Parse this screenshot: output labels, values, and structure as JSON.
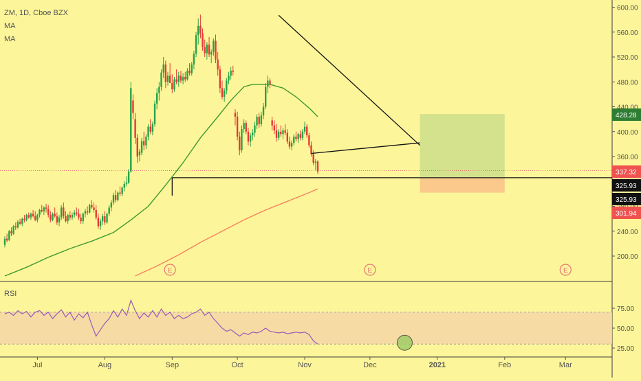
{
  "legend": {
    "symbol": "ZM, 1D, Cboe BZX",
    "ma1": "MA",
    "ma2": "MA"
  },
  "rsi_label": "RSI",
  "earnings_marker": "E",
  "colors": {
    "background": "#fdf59a",
    "up": "#26a346",
    "down": "#e53935",
    "ma50": "#3f9a2f",
    "ma200": "#f4845f",
    "rsi_line": "#9b59b6",
    "rsi_band": "#f5d7a6",
    "trend": "#111111",
    "profit_zone": "#cfe08c",
    "loss_zone": "#f9c48a",
    "price_dotted": "#e57373",
    "badge_green": "#2e7d32",
    "badge_red": "#ef5350",
    "badge_black": "#111111",
    "rsi_circle": "#9ccc65"
  },
  "chart_data": {
    "type": "candlestick",
    "price_axis": {
      "ylim": [
        150,
        610
      ],
      "ticks": [
        "200.00",
        "240.00",
        "280.00",
        "320.00",
        "360.00",
        "400.00",
        "440.00",
        "480.00",
        "520.00",
        "560.00",
        "600.00"
      ]
    },
    "rsi_axis": {
      "ylim": [
        20,
        90
      ],
      "ticks": [
        "25.00",
        "50.00",
        "75.00"
      ],
      "band": [
        30,
        70
      ]
    },
    "x_axis": {
      "labels": [
        "Jul",
        "Aug",
        "Sep",
        "Oct",
        "Nov",
        "Dec",
        "2021",
        "Feb",
        "Mar"
      ],
      "label_days": [
        15,
        46,
        77,
        107,
        138,
        168,
        199,
        230,
        258
      ]
    },
    "price_badges": [
      {
        "label": "428.28",
        "value": 428.28,
        "color": "green"
      },
      {
        "label": "337.32",
        "value": 337.32,
        "color": "red"
      },
      {
        "label": "325.93",
        "value": 325.93,
        "color": "black"
      },
      {
        "label": "325.93",
        "value": 325.93,
        "color": "black"
      },
      {
        "label": "301.94",
        "value": 301.94,
        "color": "red"
      }
    ],
    "earnings_days": [
      76,
      168,
      258
    ],
    "horizontal_level": {
      "value": 325.93,
      "from_day": 77,
      "to_day": 260
    },
    "dotted_level": {
      "value": 337.32
    },
    "trendlines": [
      {
        "points": [
          [
            126,
            587
          ],
          [
            191,
            378
          ]
        ]
      },
      {
        "points": [
          [
            141,
            365
          ],
          [
            191,
            382
          ]
        ]
      }
    ],
    "position_box": {
      "from_day": 191,
      "to_day": 230,
      "entry": 325.93,
      "target": 428.28,
      "stop": 301.94
    },
    "rsi_highlight": {
      "day": 184,
      "value": 30
    },
    "ohlc": [
      [
        0,
        218,
        232,
        214,
        228
      ],
      [
        1,
        228,
        236,
        222,
        225
      ],
      [
        2,
        226,
        242,
        224,
        240
      ],
      [
        3,
        240,
        246,
        232,
        236
      ],
      [
        4,
        236,
        250,
        234,
        248
      ],
      [
        5,
        248,
        254,
        242,
        246
      ],
      [
        6,
        246,
        258,
        244,
        255
      ],
      [
        7,
        255,
        260,
        250,
        252
      ],
      [
        8,
        252,
        262,
        248,
        260
      ],
      [
        9,
        260,
        266,
        254,
        258
      ],
      [
        10,
        258,
        268,
        256,
        266
      ],
      [
        11,
        266,
        270,
        260,
        262
      ],
      [
        12,
        262,
        270,
        258,
        268
      ],
      [
        13,
        268,
        274,
        262,
        264
      ],
      [
        14,
        264,
        272,
        256,
        258
      ],
      [
        15,
        258,
        268,
        254,
        266
      ],
      [
        16,
        266,
        276,
        262,
        274
      ],
      [
        17,
        274,
        282,
        270,
        272
      ],
      [
        18,
        272,
        280,
        266,
        278
      ],
      [
        19,
        278,
        284,
        270,
        276
      ],
      [
        20,
        276,
        282,
        262,
        266
      ],
      [
        21,
        266,
        272,
        254,
        258
      ],
      [
        22,
        258,
        270,
        256,
        268
      ],
      [
        23,
        268,
        278,
        262,
        264
      ],
      [
        24,
        264,
        270,
        250,
        254
      ],
      [
        25,
        254,
        266,
        248,
        262
      ],
      [
        26,
        262,
        282,
        258,
        278
      ],
      [
        27,
        278,
        286,
        260,
        264
      ],
      [
        28,
        264,
        272,
        254,
        256
      ],
      [
        29,
        256,
        268,
        252,
        266
      ],
      [
        30,
        266,
        272,
        258,
        262
      ],
      [
        31,
        262,
        270,
        258,
        266
      ],
      [
        32,
        266,
        274,
        262,
        270
      ],
      [
        33,
        270,
        278,
        264,
        268
      ],
      [
        34,
        268,
        276,
        258,
        262
      ],
      [
        35,
        262,
        268,
        252,
        256
      ],
      [
        36,
        256,
        270,
        252,
        268
      ],
      [
        37,
        268,
        276,
        262,
        272
      ],
      [
        38,
        272,
        280,
        266,
        270
      ],
      [
        39,
        270,
        284,
        268,
        282
      ],
      [
        40,
        282,
        290,
        276,
        278
      ],
      [
        41,
        278,
        286,
        270,
        274
      ],
      [
        42,
        274,
        282,
        258,
        262
      ],
      [
        43,
        262,
        268,
        244,
        248
      ],
      [
        44,
        248,
        260,
        242,
        256
      ],
      [
        45,
        256,
        268,
        250,
        264
      ],
      [
        46,
        264,
        272,
        250,
        254
      ],
      [
        47,
        254,
        270,
        252,
        268
      ],
      [
        48,
        268,
        282,
        264,
        278
      ],
      [
        49,
        278,
        290,
        272,
        286
      ],
      [
        50,
        286,
        302,
        282,
        298
      ],
      [
        51,
        298,
        306,
        286,
        290
      ],
      [
        52,
        290,
        304,
        288,
        302
      ],
      [
        53,
        302,
        312,
        296,
        300
      ],
      [
        54,
        300,
        312,
        296,
        310
      ],
      [
        55,
        310,
        320,
        304,
        316
      ],
      [
        56,
        316,
        328,
        312,
        318
      ],
      [
        57,
        318,
        340,
        316,
        336
      ],
      [
        58,
        336,
        480,
        334,
        470
      ],
      [
        59,
        450,
        460,
        420,
        430
      ],
      [
        60,
        420,
        430,
        380,
        390
      ],
      [
        61,
        390,
        396,
        350,
        360
      ],
      [
        62,
        362,
        372,
        352,
        368
      ],
      [
        63,
        366,
        390,
        362,
        385
      ],
      [
        64,
        385,
        400,
        370,
        378
      ],
      [
        65,
        378,
        396,
        372,
        392
      ],
      [
        66,
        392,
        412,
        386,
        408
      ],
      [
        67,
        408,
        420,
        396,
        400
      ],
      [
        68,
        400,
        416,
        394,
        412
      ],
      [
        69,
        412,
        450,
        408,
        445
      ],
      [
        70,
        445,
        470,
        436,
        462
      ],
      [
        71,
        462,
        480,
        450,
        472
      ],
      [
        72,
        472,
        500,
        466,
        495
      ],
      [
        73,
        495,
        520,
        486,
        508
      ],
      [
        74,
        508,
        514,
        470,
        480
      ],
      [
        75,
        480,
        496,
        474,
        490
      ],
      [
        76,
        490,
        510,
        480,
        478
      ],
      [
        77,
        478,
        492,
        462,
        468
      ],
      [
        78,
        468,
        488,
        464,
        484
      ],
      [
        79,
        484,
        500,
        476,
        480
      ],
      [
        80,
        480,
        496,
        472,
        490
      ],
      [
        81,
        490,
        498,
        478,
        482
      ],
      [
        82,
        482,
        494,
        476,
        488
      ],
      [
        83,
        488,
        496,
        480,
        484
      ],
      [
        84,
        484,
        502,
        482,
        498
      ],
      [
        85,
        498,
        510,
        490,
        494
      ],
      [
        86,
        494,
        512,
        490,
        508
      ],
      [
        87,
        508,
        530,
        500,
        525
      ],
      [
        88,
        525,
        560,
        520,
        555
      ],
      [
        89,
        555,
        582,
        540,
        570
      ],
      [
        90,
        570,
        588,
        550,
        558
      ],
      [
        91,
        558,
        566,
        530,
        536
      ],
      [
        92,
        536,
        548,
        520,
        526
      ],
      [
        93,
        526,
        544,
        516,
        540
      ],
      [
        94,
        540,
        552,
        520,
        524
      ],
      [
        95,
        524,
        532,
        510,
        528
      ],
      [
        96,
        528,
        550,
        522,
        546
      ],
      [
        97,
        546,
        556,
        510,
        516
      ],
      [
        98,
        516,
        528,
        490,
        500
      ],
      [
        99,
        500,
        506,
        462,
        470
      ],
      [
        100,
        470,
        482,
        452,
        456
      ],
      [
        101,
        456,
        470,
        448,
        466
      ],
      [
        102,
        466,
        486,
        460,
        482
      ],
      [
        103,
        482,
        496,
        476,
        490
      ],
      [
        104,
        490,
        504,
        484,
        498
      ],
      [
        105,
        498,
        506,
        490,
        496
      ],
      [
        106,
        430,
        436,
        410,
        424
      ],
      [
        107,
        424,
        432,
        386,
        392
      ],
      [
        108,
        392,
        400,
        362,
        370
      ],
      [
        109,
        370,
        410,
        366,
        404
      ],
      [
        110,
        404,
        420,
        398,
        414
      ],
      [
        111,
        414,
        418,
        396,
        400
      ],
      [
        112,
        400,
        406,
        378,
        384
      ],
      [
        113,
        384,
        398,
        376,
        394
      ],
      [
        114,
        394,
        404,
        386,
        398
      ],
      [
        115,
        398,
        416,
        392,
        410
      ],
      [
        116,
        410,
        428,
        404,
        424
      ],
      [
        117,
        424,
        430,
        406,
        412
      ],
      [
        118,
        412,
        432,
        408,
        426
      ],
      [
        119,
        426,
        446,
        420,
        440
      ],
      [
        120,
        440,
        478,
        436,
        472
      ],
      [
        121,
        472,
        490,
        462,
        482
      ],
      [
        122,
        482,
        486,
        470,
        476
      ],
      [
        123,
        418,
        424,
        402,
        410
      ],
      [
        124,
        410,
        418,
        396,
        402
      ],
      [
        125,
        402,
        412,
        384,
        390
      ],
      [
        126,
        390,
        404,
        386,
        400
      ],
      [
        127,
        400,
        410,
        392,
        396
      ],
      [
        128,
        396,
        406,
        388,
        402
      ],
      [
        129,
        402,
        412,
        394,
        398
      ],
      [
        130,
        398,
        404,
        380,
        384
      ],
      [
        131,
        384,
        392,
        372,
        376
      ],
      [
        132,
        376,
        386,
        370,
        382
      ],
      [
        133,
        382,
        396,
        378,
        392
      ],
      [
        134,
        392,
        400,
        384,
        388
      ],
      [
        135,
        388,
        398,
        382,
        396
      ],
      [
        136,
        396,
        402,
        386,
        390
      ],
      [
        137,
        390,
        404,
        386,
        400
      ],
      [
        138,
        400,
        416,
        396,
        408
      ],
      [
        139,
        408,
        412,
        390,
        394
      ],
      [
        140,
        394,
        398,
        374,
        378
      ],
      [
        141,
        378,
        384,
        360,
        364
      ],
      [
        142,
        364,
        370,
        346,
        350
      ],
      [
        143,
        350,
        356,
        338,
        352
      ],
      [
        144,
        352,
        354,
        332,
        336
      ]
    ],
    "ma50": [
      [
        0,
        168
      ],
      [
        10,
        182
      ],
      [
        20,
        198
      ],
      [
        30,
        212
      ],
      [
        40,
        224
      ],
      [
        50,
        238
      ],
      [
        58,
        258
      ],
      [
        66,
        280
      ],
      [
        74,
        314
      ],
      [
        82,
        350
      ],
      [
        90,
        390
      ],
      [
        98,
        424
      ],
      [
        104,
        450
      ],
      [
        110,
        472
      ],
      [
        114,
        476
      ],
      [
        122,
        476
      ],
      [
        128,
        470
      ],
      [
        134,
        456
      ],
      [
        140,
        438
      ],
      [
        144,
        424
      ]
    ],
    "ma200": [
      [
        60,
        168
      ],
      [
        70,
        184
      ],
      [
        80,
        202
      ],
      [
        90,
        222
      ],
      [
        100,
        240
      ],
      [
        110,
        258
      ],
      [
        120,
        274
      ],
      [
        130,
        288
      ],
      [
        140,
        302
      ],
      [
        144,
        308
      ]
    ],
    "rsi": [
      [
        0,
        68
      ],
      [
        2,
        70
      ],
      [
        4,
        66
      ],
      [
        6,
        72
      ],
      [
        8,
        68
      ],
      [
        10,
        71
      ],
      [
        12,
        64
      ],
      [
        14,
        70
      ],
      [
        16,
        72
      ],
      [
        18,
        66
      ],
      [
        20,
        70
      ],
      [
        22,
        62
      ],
      [
        24,
        68
      ],
      [
        26,
        73
      ],
      [
        28,
        64
      ],
      [
        30,
        70
      ],
      [
        32,
        60
      ],
      [
        34,
        68
      ],
      [
        36,
        63
      ],
      [
        38,
        70
      ],
      [
        40,
        54
      ],
      [
        42,
        40
      ],
      [
        44,
        48
      ],
      [
        46,
        56
      ],
      [
        48,
        62
      ],
      [
        50,
        72
      ],
      [
        52,
        64
      ],
      [
        54,
        74
      ],
      [
        56,
        66
      ],
      [
        58,
        85
      ],
      [
        60,
        72
      ],
      [
        62,
        62
      ],
      [
        64,
        69
      ],
      [
        66,
        64
      ],
      [
        68,
        72
      ],
      [
        70,
        64
      ],
      [
        72,
        74
      ],
      [
        74,
        66
      ],
      [
        76,
        70
      ],
      [
        78,
        62
      ],
      [
        80,
        66
      ],
      [
        82,
        62
      ],
      [
        84,
        64
      ],
      [
        86,
        68
      ],
      [
        88,
        70
      ],
      [
        90,
        74
      ],
      [
        92,
        66
      ],
      [
        94,
        70
      ],
      [
        96,
        62
      ],
      [
        98,
        56
      ],
      [
        100,
        50
      ],
      [
        102,
        46
      ],
      [
        104,
        48
      ],
      [
        106,
        44
      ],
      [
        108,
        40
      ],
      [
        110,
        44
      ],
      [
        112,
        42
      ],
      [
        114,
        45
      ],
      [
        116,
        44
      ],
      [
        118,
        46
      ],
      [
        120,
        50
      ],
      [
        122,
        46
      ],
      [
        124,
        45
      ],
      [
        126,
        44
      ],
      [
        128,
        45
      ],
      [
        130,
        43
      ],
      [
        132,
        44
      ],
      [
        134,
        45
      ],
      [
        136,
        44
      ],
      [
        138,
        45
      ],
      [
        140,
        42
      ],
      [
        142,
        34
      ],
      [
        144,
        30
      ]
    ]
  }
}
